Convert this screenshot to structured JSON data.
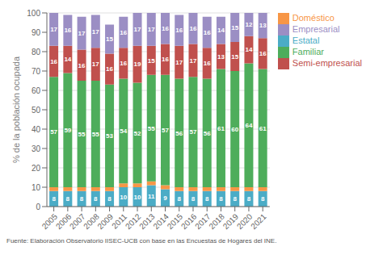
{
  "chart_data": {
    "type": "bar",
    "stacked": true,
    "grid": true,
    "legend": "upper right",
    "ylabel": "% de la población ocupada",
    "footnote": "Fuente: Elaboración Observatorio IISEC-UCB con base en las Encuestas de Hogares del INE.",
    "categories": [
      "2005",
      "2006",
      "2007",
      "2008",
      "2009",
      "2011",
      "2012",
      "2013",
      "2014",
      "2015",
      "2016",
      "2017",
      "2018",
      "2019",
      "2020",
      "2021"
    ],
    "ylim": [
      0,
      100
    ],
    "yticks": [
      0,
      10,
      20,
      30,
      40,
      50,
      60,
      70,
      80,
      90,
      100
    ],
    "series": [
      {
        "name": "Estatal",
        "color": "#4bacc6",
        "data_labels": true,
        "values": [
          8,
          8,
          8,
          8,
          8,
          10,
          10,
          11,
          9,
          8,
          8,
          8,
          8,
          8,
          8,
          8
        ]
      },
      {
        "name": "Doméstico",
        "color": "#f79646",
        "data_labels": false,
        "values": [
          2,
          2,
          2,
          2,
          2,
          2,
          2,
          2,
          2,
          2,
          2,
          2,
          2,
          2,
          2,
          2
        ]
      },
      {
        "name": "Familiar",
        "color": "#4ead5b",
        "data_labels": true,
        "values": [
          57,
          59,
          55,
          55,
          53,
          54,
          52,
          55,
          57,
          56,
          57,
          56,
          61,
          60,
          64,
          61
        ]
      },
      {
        "name": "Semi-empresarial",
        "color": "#c0504d",
        "data_labels": true,
        "values": [
          16,
          14,
          16,
          17,
          16,
          16,
          19,
          15,
          16,
          17,
          17,
          16,
          13,
          15,
          14,
          16
        ]
      },
      {
        "name": "Empresarial",
        "color": "#9b8ec4",
        "data_labels": true,
        "values": [
          17,
          16,
          17,
          17,
          15,
          16,
          17,
          17,
          16,
          16,
          16,
          16,
          14,
          15,
          12,
          13
        ]
      }
    ]
  }
}
